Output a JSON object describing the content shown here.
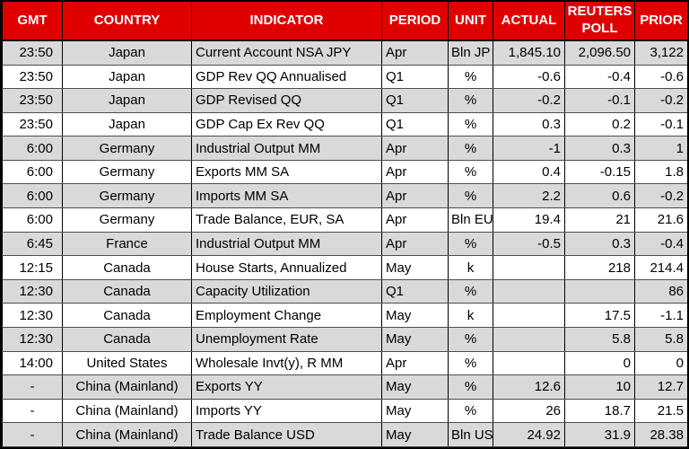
{
  "colors": {
    "header_bg": "#e00000",
    "header_text": "#ffffff",
    "row_shade": "#d9d9d9",
    "row_plain": "#ffffff",
    "border": "#000000"
  },
  "table": {
    "columns": [
      {
        "key": "gmt",
        "label": "GMT",
        "align": "right"
      },
      {
        "key": "country",
        "label": "COUNTRY",
        "align": "center"
      },
      {
        "key": "indicator",
        "label": "INDICATOR",
        "align": "left"
      },
      {
        "key": "period",
        "label": "PERIOD",
        "align": "left"
      },
      {
        "key": "unit",
        "label": "UNIT",
        "align": "center"
      },
      {
        "key": "actual",
        "label": "ACTUAL",
        "align": "right"
      },
      {
        "key": "poll",
        "label": "REUTERS POLL",
        "align": "right"
      },
      {
        "key": "prior",
        "label": "PRIOR",
        "align": "right"
      }
    ],
    "rows": [
      {
        "gmt": "23:50",
        "country": "Japan",
        "indicator": "Current Account NSA JPY",
        "period": "Apr",
        "unit": "Bln JP",
        "actual": "1,845.10",
        "poll": "2,096.50",
        "prior": "3,122"
      },
      {
        "gmt": "23:50",
        "country": "Japan",
        "indicator": "GDP Rev QQ Annualised",
        "period": "Q1",
        "unit": "%",
        "actual": "-0.6",
        "poll": "-0.4",
        "prior": "-0.6"
      },
      {
        "gmt": "23:50",
        "country": "Japan",
        "indicator": "GDP Revised QQ",
        "period": "Q1",
        "unit": "%",
        "actual": "-0.2",
        "poll": "-0.1",
        "prior": "-0.2"
      },
      {
        "gmt": "23:50",
        "country": "Japan",
        "indicator": "GDP Cap Ex Rev QQ",
        "period": "Q1",
        "unit": "%",
        "actual": "0.3",
        "poll": "0.2",
        "prior": "-0.1"
      },
      {
        "gmt": "6:00",
        "country": "Germany",
        "indicator": "Industrial Output MM",
        "period": "Apr",
        "unit": "%",
        "actual": "-1",
        "poll": "0.3",
        "prior": "1"
      },
      {
        "gmt": "6:00",
        "country": "Germany",
        "indicator": "Exports MM SA",
        "period": "Apr",
        "unit": "%",
        "actual": "0.4",
        "poll": "-0.15",
        "prior": "1.8"
      },
      {
        "gmt": "6:00",
        "country": "Germany",
        "indicator": "Imports MM SA",
        "period": "Apr",
        "unit": "%",
        "actual": "2.2",
        "poll": "0.6",
        "prior": "-0.2"
      },
      {
        "gmt": "6:00",
        "country": "Germany",
        "indicator": "Trade Balance, EUR, SA",
        "period": "Apr",
        "unit": "Bln EU",
        "actual": "19.4",
        "poll": "21",
        "prior": "21.6"
      },
      {
        "gmt": "6:45",
        "country": "France",
        "indicator": "Industrial Output MM",
        "period": "Apr",
        "unit": "%",
        "actual": "-0.5",
        "poll": "0.3",
        "prior": "-0.4"
      },
      {
        "gmt": "12:15",
        "country": "Canada",
        "indicator": "House Starts, Annualized",
        "period": "May",
        "unit": "k",
        "actual": "",
        "poll": "218",
        "prior": "214.4"
      },
      {
        "gmt": "12:30",
        "country": "Canada",
        "indicator": "Capacity Utilization",
        "period": "Q1",
        "unit": "%",
        "actual": "",
        "poll": "",
        "prior": "86"
      },
      {
        "gmt": "12:30",
        "country": "Canada",
        "indicator": "Employment Change",
        "period": "May",
        "unit": "k",
        "actual": "",
        "poll": "17.5",
        "prior": "-1.1"
      },
      {
        "gmt": "12:30",
        "country": "Canada",
        "indicator": "Unemployment Rate",
        "period": "May",
        "unit": "%",
        "actual": "",
        "poll": "5.8",
        "prior": "5.8"
      },
      {
        "gmt": "14:00",
        "country": "United States",
        "indicator": "Wholesale Invt(y), R MM",
        "period": "Apr",
        "unit": "%",
        "actual": "",
        "poll": "0",
        "prior": "0"
      },
      {
        "gmt": "-",
        "country": "China (Mainland)",
        "indicator": "Exports YY",
        "period": "May",
        "unit": "%",
        "actual": "12.6",
        "poll": "10",
        "prior": "12.7"
      },
      {
        "gmt": "-",
        "country": "China (Mainland)",
        "indicator": "Imports YY",
        "period": "May",
        "unit": "%",
        "actual": "26",
        "poll": "18.7",
        "prior": "21.5"
      },
      {
        "gmt": "-",
        "country": "China (Mainland)",
        "indicator": "Trade Balance USD",
        "period": "May",
        "unit": "Bln US",
        "actual": "24.92",
        "poll": "31.9",
        "prior": "28.38"
      }
    ]
  }
}
